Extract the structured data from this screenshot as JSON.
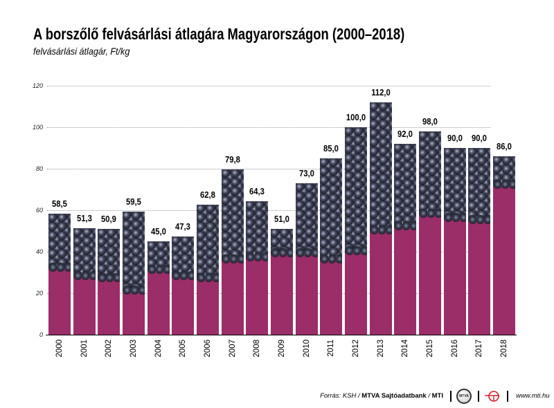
{
  "chart_data": {
    "type": "bar",
    "title": "A borszőlő felvásárlási átlagára Magyarországon (2000–2018)",
    "subtitle": "felvásárlási átlagár, Ft/kg",
    "categories": [
      "2000",
      "2001",
      "2002",
      "2003",
      "2004",
      "2005",
      "2006",
      "2007",
      "2008",
      "2009",
      "2010",
      "2011",
      "2012",
      "2013",
      "2014",
      "2015",
      "2016",
      "2017",
      "2018"
    ],
    "values": [
      58.5,
      51.3,
      50.9,
      59.5,
      45.0,
      47.3,
      62.8,
      79.8,
      64.3,
      51.0,
      73.0,
      85.0,
      100.0,
      112.0,
      92.0,
      98.0,
      90.0,
      90.0,
      86.0
    ],
    "value_labels": [
      "58,5",
      "51,3",
      "50,9",
      "59,5",
      "45,0",
      "47,3",
      "62,8",
      "79,8",
      "64,3",
      "51,0",
      "73,0",
      "85,0",
      "100,0",
      "112,0",
      "92,0",
      "98,0",
      "90,0",
      "90,0",
      "86,0"
    ],
    "ylim": [
      0,
      120
    ],
    "yticks": [
      0,
      20,
      40,
      60,
      80,
      100,
      120
    ],
    "grid": true,
    "legend": "none"
  },
  "colors": {
    "bar_fill": "#9b2d69",
    "grape_texture": "#1d1e28",
    "mti_red": "#d0202a"
  },
  "footer": {
    "source_prefix": "Forrás: KSH / ",
    "source_bold": "MTVA Sajtóadatbank",
    "source_separator": " / ",
    "source_agency": "MTI",
    "logo_text": "MTVA",
    "website": "www.mti.hu"
  },
  "icons": {
    "mtva_logo": "mtva-logo-icon",
    "mti_logo": "mti-logo-icon"
  }
}
